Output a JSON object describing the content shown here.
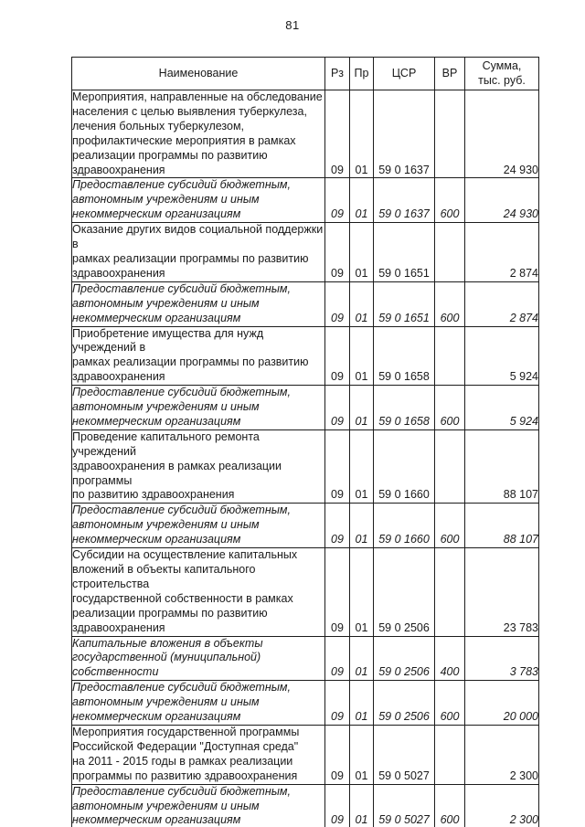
{
  "page_number": "81",
  "table": {
    "headers": {
      "name": "Наименование",
      "rz": "Рз",
      "pr": "Пр",
      "csr": "ЦСР",
      "vr": "ВР",
      "sum": "Сумма,\nтыс. руб."
    },
    "rows": [
      {
        "name": "Мероприятия, направленные на обследование\nнаселения с целью выявления туберкулеза,\nлечения больных туберкулезом,\nпрофилактические мероприятия в рамках\nреализации программы по развитию\nздравоохранения",
        "rz": "09",
        "pr": "01",
        "csr": "59 0 1637",
        "vr": "",
        "sum": "24 930",
        "italic": false
      },
      {
        "name": "Предоставление субсидий бюджетным,\nавтономным учреждениям и иным\nнекоммерческим организациям",
        "rz": "09",
        "pr": "01",
        "csr": "59 0 1637",
        "vr": "600",
        "sum": "24 930",
        "italic": true
      },
      {
        "name": "Оказание других видов социальной поддержки в\nрамках реализации программы по развитию\nздравоохранения",
        "rz": "09",
        "pr": "01",
        "csr": "59 0 1651",
        "vr": "",
        "sum": "2 874",
        "italic": false
      },
      {
        "name": "Предоставление субсидий бюджетным,\nавтономным учреждениям и иным\nнекоммерческим организациям",
        "rz": "09",
        "pr": "01",
        "csr": "59 0 1651",
        "vr": "600",
        "sum": "2 874",
        "italic": true
      },
      {
        "name": "Приобретение имущества для нужд учреждений в\nрамках реализации программы по развитию\nздравоохранения",
        "rz": "09",
        "pr": "01",
        "csr": "59 0 1658",
        "vr": "",
        "sum": "5 924",
        "italic": false
      },
      {
        "name": "Предоставление субсидий бюджетным,\nавтономным учреждениям и иным\nнекоммерческим организациям",
        "rz": "09",
        "pr": "01",
        "csr": "59 0 1658",
        "vr": "600",
        "sum": "5 924",
        "italic": true
      },
      {
        "name": "Проведение капитального ремонта учреждений\nздравоохранения в рамках реализации программы\nпо развитию здравоохранения",
        "rz": "09",
        "pr": "01",
        "csr": "59 0 1660",
        "vr": "",
        "sum": "88 107",
        "italic": false
      },
      {
        "name": "Предоставление субсидий бюджетным,\nавтономным учреждениям и иным\nнекоммерческим организациям",
        "rz": "09",
        "pr": "01",
        "csr": "59 0 1660",
        "vr": "600",
        "sum": "88 107",
        "italic": true
      },
      {
        "name": "Субсидии на осуществление капитальных\nвложений в объекты капитального строительства\nгосударственной собственности в рамках\nреализации программы по развитию\nздравоохранения",
        "rz": "09",
        "pr": "01",
        "csr": "59 0 2506",
        "vr": "",
        "sum": "23 783",
        "italic": false
      },
      {
        "name": "Капитальные вложения в объекты\nгосударственной (муниципальной)\nсобственности",
        "rz": "09",
        "pr": "01",
        "csr": "59 0 2506",
        "vr": "400",
        "sum": "3 783",
        "italic": true
      },
      {
        "name": "Предоставление субсидий бюджетным,\nавтономным учреждениям и иным\nнекоммерческим организациям",
        "rz": "09",
        "pr": "01",
        "csr": "59 0 2506",
        "vr": "600",
        "sum": "20 000",
        "italic": true
      },
      {
        "name": "Мероприятия государственной программы\nРоссийской Федерации \"Доступная среда\"\nна 2011 - 2015 годы в рамках реализации\nпрограммы по развитию здравоохранения",
        "rz": "09",
        "pr": "01",
        "csr": "59 0 5027",
        "vr": "",
        "sum": "2 300",
        "italic": false
      },
      {
        "name": "Предоставление субсидий бюджетным,\nавтономным учреждениям и иным\nнекоммерческим организациям",
        "rz": "09",
        "pr": "01",
        "csr": "59 0 5027",
        "vr": "600",
        "sum": "2 300",
        "italic": true
      }
    ]
  }
}
